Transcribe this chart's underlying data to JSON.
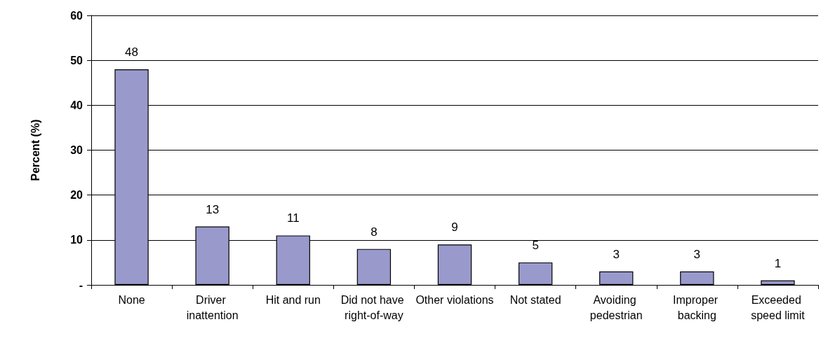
{
  "chart_data": {
    "type": "bar",
    "ylabel": "Percent (%)",
    "categories": [
      "None",
      "Driver inattention",
      "Hit and run",
      "Did not have right-of-way",
      "Other violations",
      "Not stated",
      "Avoiding pedestrian",
      "Improper backing",
      "Exceeded speed limit"
    ],
    "values": [
      48,
      13,
      11,
      8,
      9,
      5,
      3,
      3,
      1
    ],
    "color": "#9999cc",
    "data_labels": true,
    "ylim": [
      0,
      60
    ],
    "yticks": [
      {
        "value": 0,
        "label": "-"
      },
      10,
      20,
      30,
      40,
      50,
      60
    ],
    "grid": "y"
  }
}
